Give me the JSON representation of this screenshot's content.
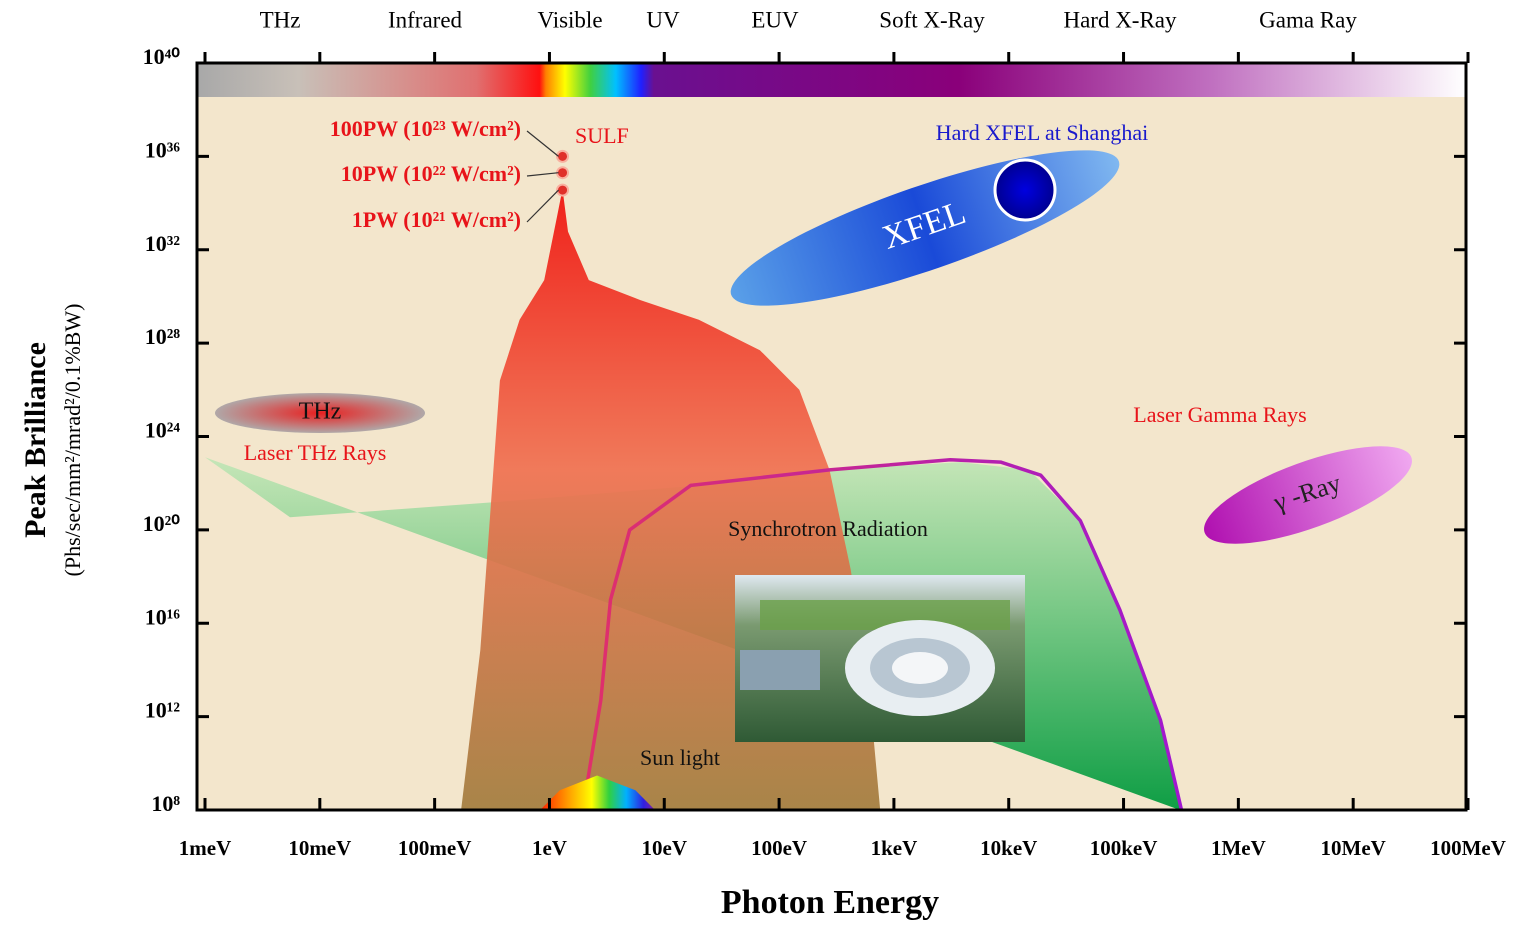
{
  "chart_data": {
    "type": "area",
    "xlabel": "Photon Energy",
    "ylabel": "Peak Brilliance",
    "ylabel_sub": "(Phs/sec/mm²/mrad²/0.1%BW)",
    "xscale": "log",
    "yscale": "log",
    "xlim": [
      0.001,
      100000000
    ],
    "ylim": [
      100000000.0,
      1e+40
    ],
    "xticks": [
      {
        "value": 0.001,
        "label": "1meV"
      },
      {
        "value": 0.01,
        "label": "10meV"
      },
      {
        "value": 0.1,
        "label": "100meV"
      },
      {
        "value": 1,
        "label": "1eV"
      },
      {
        "value": 10,
        "label": "10eV"
      },
      {
        "value": 100,
        "label": "100eV"
      },
      {
        "value": 1000,
        "label": "1keV"
      },
      {
        "value": 10000,
        "label": "10keV"
      },
      {
        "value": 100000,
        "label": "100keV"
      },
      {
        "value": 1000000,
        "label": "1MeV"
      },
      {
        "value": 10000000,
        "label": "10MeV"
      },
      {
        "value": 100000000,
        "label": "100MeV"
      }
    ],
    "yticks": [
      {
        "value": 100000000.0,
        "label": "10⁸"
      },
      {
        "value": 1000000000000.0,
        "label": "10¹²"
      },
      {
        "value": 1e+16,
        "label": "10¹⁶"
      },
      {
        "value": 1e+20,
        "label": "10²⁰"
      },
      {
        "value": 1e+24,
        "label": "10²⁴"
      },
      {
        "value": 1e+28,
        "label": "10²⁸"
      },
      {
        "value": 1e+32,
        "label": "10³²"
      },
      {
        "value": 1e+36,
        "label": "10³⁶"
      },
      {
        "value": 1e+40,
        "label": "10⁴⁰"
      }
    ],
    "spectrum_bands": [
      "THz",
      "Infrared",
      "Visible",
      "UV",
      "EUV",
      "Soft X-Ray",
      "Hard X-Ray",
      "Gama Ray"
    ],
    "series": [
      {
        "kind": "area",
        "color": "#1fa84a",
        "x": [
          0.001,
          0.0055,
          0.37,
          20,
          275,
          3800,
          15000,
          42000,
          93000,
          210000,
          310000
        ],
        "values": [
          1.3e+23,
          3.5e+20,
          1.6e+21,
          8e+21,
          3.7e+22,
          8e+22,
          3.7e+22,
          2.5e+20,
          3.7e+16,
          700000000000.0,
          100000000.0
        ]
      },
      {
        "kind": "area",
        "name": "SULF",
        "color": "#f03a20",
        "x": [
          0.17,
          0.25,
          0.37,
          0.55,
          0.9,
          1.17,
          1.3,
          1.45,
          2.2,
          6.2,
          20,
          68,
          150,
          275,
          420,
          620,
          760
        ],
        "values": [
          100000000.0,
          700000000000000.0,
          2.5e+26,
          1e+29,
          5e+30,
          3e+33,
          4e+34,
          6e+32,
          5e+30,
          7e+29,
          1e+29,
          5e+27,
          1e+26,
          3.7e+22,
          2e+18,
          5000000000000.0,
          100000000.0
        ]
      },
      {
        "kind": "line",
        "name": "Synchrotron Radiation",
        "color": "#b0209a",
        "x": [
          1.95,
          2.8,
          3.4,
          5,
          17,
          275,
          3100,
          8500,
          19000,
          42000,
          93000,
          210000,
          320000
        ],
        "values": [
          100000000.0,
          5000000000000.0,
          1e+17,
          1e+20,
          8e+21,
          3.7e+22,
          1e+23,
          8e+22,
          2.2e+22,
          2.5e+20,
          3.7e+16,
          700000000000.0,
          100000000.0
        ]
      },
      {
        "kind": "rainbow",
        "name": "Sun light",
        "x": [
          0.83,
          1.23,
          2.6,
          5.6,
          8.3
        ],
        "values": [
          100000000.0,
          700000000.0,
          3000000000.0,
          700000000.0,
          100000000.0
        ]
      },
      {
        "kind": "points",
        "color": "#e0302a",
        "x": [
          1.3,
          1.3,
          1.3
        ],
        "values": [
          1e+36,
          2e+35,
          3.6e+34
        ],
        "labels": [
          "100PW (10²³ W/cm²)",
          "10PW (10²² W/cm²)",
          "1PW (10²¹ W/cm²)"
        ]
      }
    ],
    "annotations": [
      "Hard XFEL at Shanghai",
      "XFEL",
      "THz",
      "Laser THz Rays",
      "Laser Gamma Rays",
      "γ -Ray"
    ]
  }
}
